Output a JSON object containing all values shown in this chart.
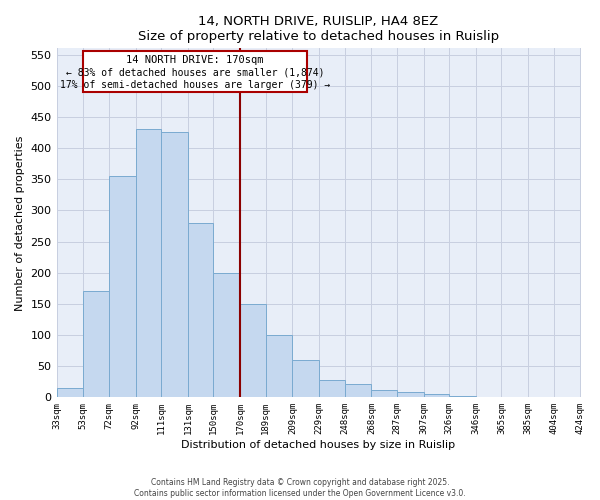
{
  "title": "14, NORTH DRIVE, RUISLIP, HA4 8EZ",
  "subtitle": "Size of property relative to detached houses in Ruislip",
  "xlabel": "Distribution of detached houses by size in Ruislip",
  "ylabel": "Number of detached properties",
  "bar_color": "#c5d8ef",
  "bar_edge_color": "#7aaad0",
  "background_color": "#e8eef8",
  "grid_color": "#c8cfe0",
  "bin_edges": [
    33,
    53,
    72,
    92,
    111,
    131,
    150,
    170,
    189,
    209,
    229,
    248,
    268,
    287,
    307,
    326,
    346,
    365,
    385,
    404,
    424
  ],
  "bar_heights": [
    15,
    170,
    355,
    430,
    425,
    280,
    200,
    150,
    100,
    60,
    28,
    22,
    12,
    8,
    5,
    2,
    1,
    0,
    0,
    0
  ],
  "vline_x": 170,
  "vline_color": "#8b0000",
  "annotation_title": "14 NORTH DRIVE: 170sqm",
  "annotation_line1": "← 83% of detached houses are smaller (1,874)",
  "annotation_line2": "17% of semi-detached houses are larger (379) →",
  "annotation_box_color": "#aa0000",
  "ylim": [
    0,
    560
  ],
  "yticks": [
    0,
    50,
    100,
    150,
    200,
    250,
    300,
    350,
    400,
    450,
    500,
    550
  ],
  "xlim": [
    33,
    424
  ],
  "footnote1": "Contains HM Land Registry data © Crown copyright and database right 2025.",
  "footnote2": "Contains public sector information licensed under the Open Government Licence v3.0."
}
